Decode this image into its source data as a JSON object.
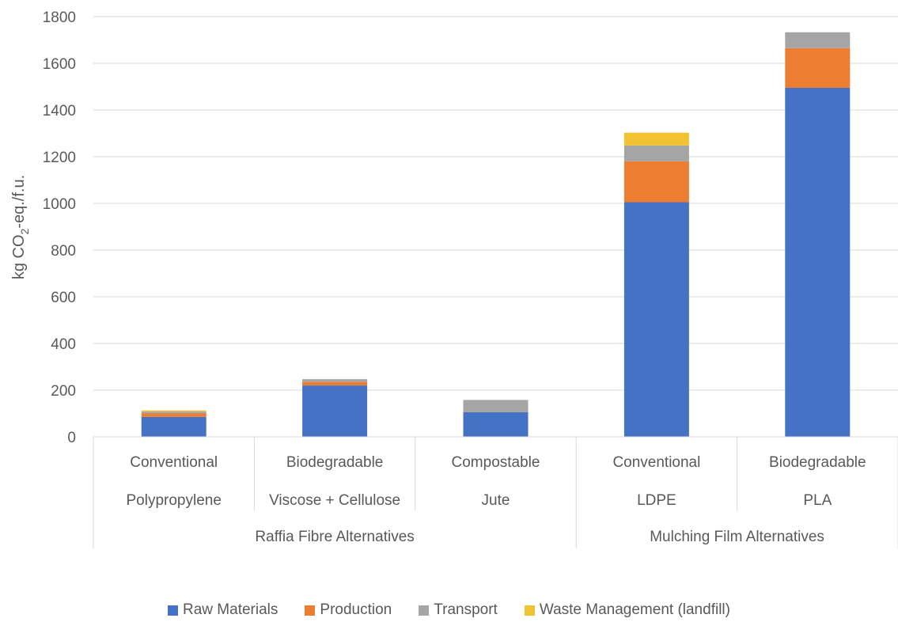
{
  "chart_data": {
    "type": "bar",
    "stacked": true,
    "ylabel": "kg CO2-eq./f.u.",
    "ylabel_parts": {
      "pre": "kg CO",
      "sub": "2",
      "post": "-eq./f.u."
    },
    "ylim": [
      0,
      1800
    ],
    "yticks": [
      0,
      200,
      400,
      600,
      800,
      1000,
      1200,
      1400,
      1600,
      1800
    ],
    "grid": true,
    "legend_position": "bottom",
    "categories": [
      {
        "line1": "Conventional",
        "line2": "Polypropylene"
      },
      {
        "line1": "Biodegradable",
        "line2": "Viscose + Cellulose"
      },
      {
        "line1": "Compostable",
        "line2": "Jute"
      },
      {
        "line1": "Conventional",
        "line2": "LDPE"
      },
      {
        "line1": "Biodegradable",
        "line2": "PLA"
      }
    ],
    "groups": [
      {
        "label": "Raffia Fibre Alternatives",
        "span": [
          0,
          2
        ]
      },
      {
        "label": "Mulching Film Alternatives",
        "span": [
          3,
          4
        ]
      }
    ],
    "series": [
      {
        "name": "Raw Materials",
        "color": "#4472C4",
        "values": [
          85,
          220,
          105,
          1005,
          1495
        ]
      },
      {
        "name": "Production",
        "color": "#ED7D31",
        "values": [
          15,
          15,
          0,
          175,
          170
        ]
      },
      {
        "name": "Transport",
        "color": "#A5A5A5",
        "values": [
          8,
          12,
          53,
          68,
          68
        ]
      },
      {
        "name": "Waste Management (landfill)",
        "color": "#F1C232",
        "values": [
          5,
          0,
          0,
          55,
          0
        ]
      }
    ]
  }
}
